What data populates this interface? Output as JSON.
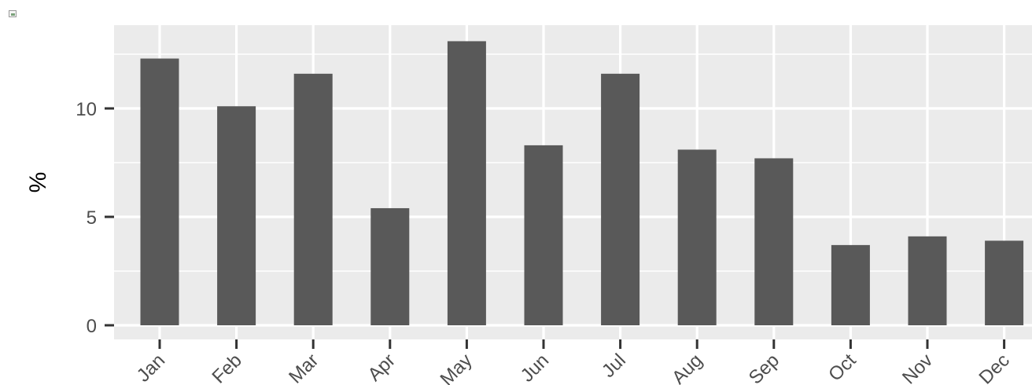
{
  "chart_data": {
    "type": "bar",
    "title": "",
    "xlabel": "",
    "ylabel": "%",
    "categories": [
      "Jan",
      "Feb",
      "Mar",
      "Apr",
      "May",
      "Jun",
      "Jul",
      "Aug",
      "Sep",
      "Oct",
      "Nov",
      "Dec"
    ],
    "values": [
      12.3,
      10.1,
      11.6,
      5.4,
      13.1,
      8.3,
      11.6,
      8.1,
      7.7,
      3.7,
      4.1,
      3.9
    ],
    "ylim": [
      -0.6,
      13.9
    ],
    "yticks": [
      0,
      5,
      10
    ],
    "grid": true,
    "bar_color": "#595959",
    "panel_background": "#ebebeb",
    "grid_color": "#ffffff"
  },
  "icons": {
    "top_left": "broken-image-icon"
  }
}
